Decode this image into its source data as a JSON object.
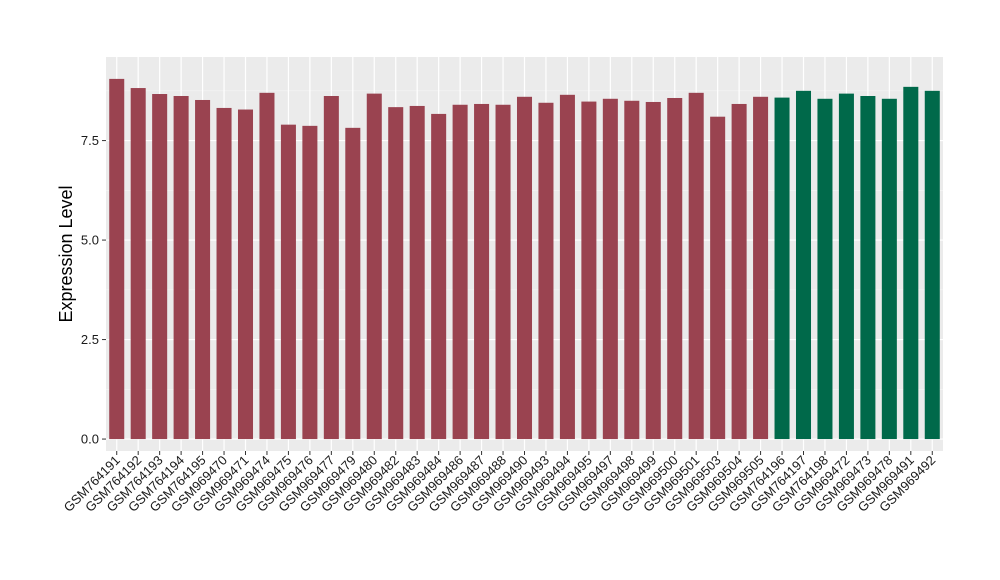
{
  "chart_data": {
    "type": "bar",
    "ylabel": "Expression Level",
    "xlabel": "",
    "ylim": [
      -0.3,
      9.6
    ],
    "y_ticks": [
      "0.0",
      "2.5",
      "5.0",
      "7.5"
    ],
    "y_tick_values": [
      0,
      2.5,
      5.0,
      7.5
    ],
    "grid": true,
    "panel_background": "#ebebeb",
    "categories": [
      "GSM764191",
      "GSM764192",
      "GSM764193",
      "GSM764194",
      "GSM764195",
      "GSM969470",
      "GSM969471",
      "GSM969474",
      "GSM969475",
      "GSM969476",
      "GSM969477",
      "GSM969479",
      "GSM969480",
      "GSM969482",
      "GSM969483",
      "GSM969484",
      "GSM969486",
      "GSM969487",
      "GSM969488",
      "GSM969490",
      "GSM969493",
      "GSM969494",
      "GSM969495",
      "GSM969497",
      "GSM969498",
      "GSM969499",
      "GSM969500",
      "GSM969501",
      "GSM969503",
      "GSM969504",
      "GSM969505",
      "GSM764196",
      "GSM764197",
      "GSM764198",
      "GSM969472",
      "GSM969473",
      "GSM969478",
      "GSM969491",
      "GSM969492"
    ],
    "values": [
      9.05,
      8.82,
      8.67,
      8.62,
      8.52,
      8.32,
      8.28,
      8.7,
      7.9,
      7.87,
      8.62,
      7.82,
      8.68,
      8.34,
      8.37,
      8.17,
      8.4,
      8.42,
      8.4,
      8.6,
      8.45,
      8.65,
      8.48,
      8.55,
      8.5,
      8.47,
      8.57,
      8.7,
      8.1,
      8.42,
      8.6,
      8.58,
      8.75,
      8.55,
      8.68,
      8.62,
      8.55,
      8.85,
      8.75
    ],
    "groups": [
      0,
      0,
      0,
      0,
      0,
      0,
      0,
      0,
      0,
      0,
      0,
      0,
      0,
      0,
      0,
      0,
      0,
      0,
      0,
      0,
      0,
      0,
      0,
      0,
      0,
      0,
      0,
      0,
      0,
      0,
      0,
      1,
      1,
      1,
      1,
      1,
      1,
      1,
      1
    ],
    "group_colors": [
      "#9a4350",
      "#00694a"
    ]
  }
}
